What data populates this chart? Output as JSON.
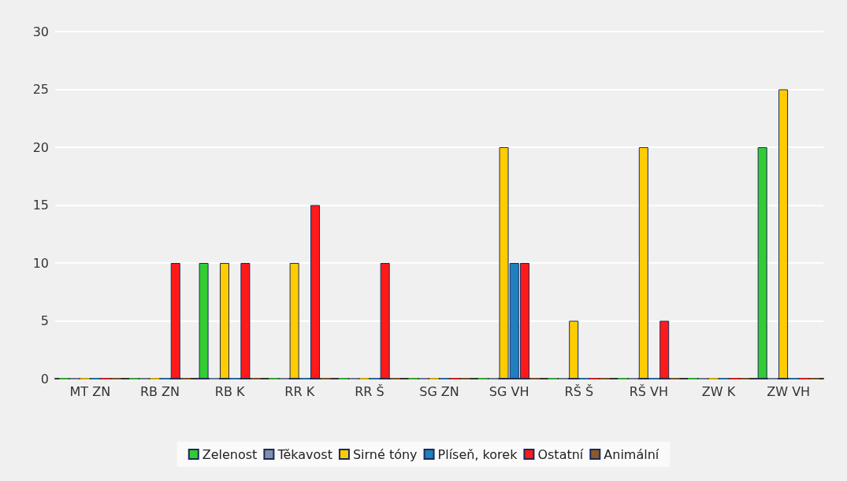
{
  "chart_data": {
    "type": "bar",
    "categories": [
      "MT ZN",
      "RB ZN",
      "RB K",
      "RR K",
      "RR Š",
      "SG ZN",
      "SG VH",
      "RŠ Š",
      "RŠ VH",
      "ZW K",
      "ZW VH"
    ],
    "series": [
      {
        "name": "Zelenost",
        "color": "#33cc33",
        "values": [
          0,
          0,
          10,
          0,
          0,
          0,
          0,
          0,
          0,
          0,
          20
        ]
      },
      {
        "name": "Těkavost",
        "color": "#8090a8",
        "values": [
          0,
          0,
          0,
          0,
          0,
          0,
          0,
          0,
          0,
          0,
          0
        ]
      },
      {
        "name": "Sirné tóny",
        "color": "#ffcc00",
        "values": [
          0,
          0,
          10,
          10,
          0,
          0,
          20,
          5,
          20,
          0,
          25
        ]
      },
      {
        "name": "Plíseň, korek",
        "color": "#1f7fbf",
        "values": [
          0,
          0,
          0,
          0,
          0,
          0,
          10,
          0,
          0,
          0,
          0
        ]
      },
      {
        "name": "Ostatní",
        "color": "#ff1a1a",
        "values": [
          0,
          10,
          10,
          15,
          10,
          0,
          10,
          0,
          5,
          0,
          0
        ]
      },
      {
        "name": "Animální",
        "color": "#8b5a2b",
        "values": [
          0,
          0,
          0,
          0,
          0,
          0,
          0,
          0,
          0,
          0,
          0
        ]
      }
    ],
    "ylim": [
      0,
      30
    ],
    "yticks": [
      0,
      5,
      10,
      15,
      20,
      25,
      30
    ],
    "grid": "y",
    "legend": "bottom"
  }
}
